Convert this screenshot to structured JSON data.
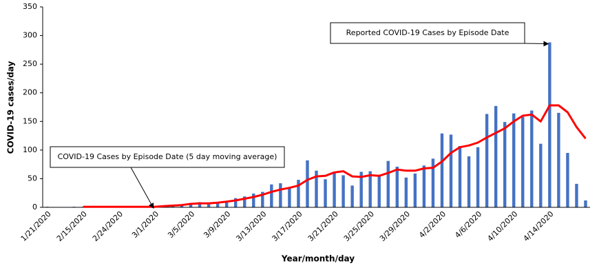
{
  "chart_data": {
    "type": "bar-line",
    "categories": [
      "1/21/2020",
      null,
      null,
      null,
      "2/15/2020",
      null,
      null,
      null,
      "2/24/2020",
      null,
      null,
      null,
      "3/1/2020",
      null,
      null,
      null,
      "3/5/2020",
      null,
      null,
      null,
      "3/9/2020",
      null,
      null,
      null,
      "3/13/2020",
      null,
      null,
      null,
      "3/17/2020",
      null,
      null,
      null,
      "3/21/2020",
      null,
      null,
      null,
      "3/25/2020",
      null,
      null,
      null,
      "3/29/2020",
      null,
      null,
      null,
      "4/2/2020",
      null,
      null,
      null,
      "4/6/2020",
      null,
      null,
      null,
      "4/10/2020",
      null,
      null,
      null,
      "4/14/2020",
      null,
      null,
      null,
      null
    ],
    "series": [
      {
        "name": "Reported COVID-19 Cases by Episode Date",
        "kind": "bar",
        "color": "#4472c4",
        "values": [
          1,
          0,
          0,
          1,
          1,
          1,
          1,
          1,
          1,
          1,
          0,
          1,
          1,
          2,
          3,
          5,
          6,
          9,
          8,
          8,
          10,
          16,
          19,
          24,
          27,
          40,
          42,
          35,
          48,
          82,
          64,
          49,
          60,
          56,
          38,
          62,
          63,
          57,
          81,
          71,
          52,
          59,
          73,
          85,
          129,
          127,
          107,
          89,
          105,
          163,
          177,
          149,
          164,
          158,
          169,
          111,
          288,
          165,
          95,
          41,
          12
        ]
      },
      {
        "name": "COVID-19 Cases by Episode Date (5 day moving average)",
        "kind": "line",
        "color": "#ff0000",
        "values": [
          null,
          null,
          null,
          null,
          1,
          1,
          1,
          1,
          1,
          1,
          1,
          1,
          1,
          2,
          3,
          4,
          6,
          7,
          7,
          8,
          10,
          12,
          15,
          18,
          22,
          27,
          31,
          34,
          38,
          48,
          54,
          55,
          61,
          63,
          54,
          53,
          56,
          55,
          60,
          66,
          64,
          64,
          68,
          69,
          80,
          95,
          105,
          108,
          113,
          122,
          130,
          138,
          150,
          160,
          162,
          150,
          178,
          178,
          166,
          140,
          120
        ]
      }
    ],
    "y_label": "COVID-19 cases/day",
    "x_label": "Year/month/day",
    "ylim": [
      0,
      350
    ],
    "yticks": [
      0,
      50,
      100,
      150,
      200,
      250,
      300,
      350
    ],
    "grid": false,
    "annotations": [
      {
        "text": "Reported COVID-19 Cases by Episode Date",
        "series": 0,
        "index": 56
      },
      {
        "text": "COVID-19 Cases by Episode Date (5 day moving average)",
        "series": 1,
        "index": 12
      }
    ]
  }
}
